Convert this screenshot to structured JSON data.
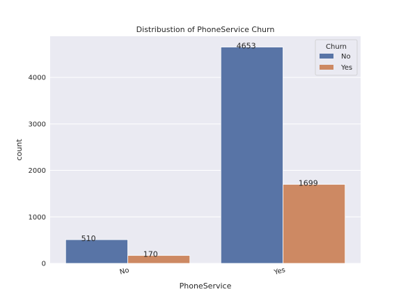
{
  "chart_data": {
    "type": "bar",
    "title": "Distribustion of PhoneService Churn",
    "xlabel": "PhoneService",
    "ylabel": "count",
    "categories": [
      "No",
      "Yes"
    ],
    "series": [
      {
        "name": "No",
        "values": [
          510,
          4653
        ],
        "color": "#5874a6"
      },
      {
        "name": "Yes",
        "values": [
          170,
          1699
        ],
        "color": "#cd8963"
      }
    ],
    "data_labels": [
      [
        "510",
        "4653"
      ],
      [
        "170",
        "1699"
      ]
    ],
    "yticks": [
      0,
      1000,
      2000,
      3000,
      4000
    ],
    "ytick_labels": [
      "0",
      "1000",
      "2000",
      "3000",
      "4000"
    ],
    "ylim": [
      0,
      4885.65
    ],
    "grid": true,
    "legend": {
      "title": "Churn",
      "placement": "top-right"
    },
    "background_color": "#eaeaf2",
    "grid_color": "#ffffff"
  }
}
